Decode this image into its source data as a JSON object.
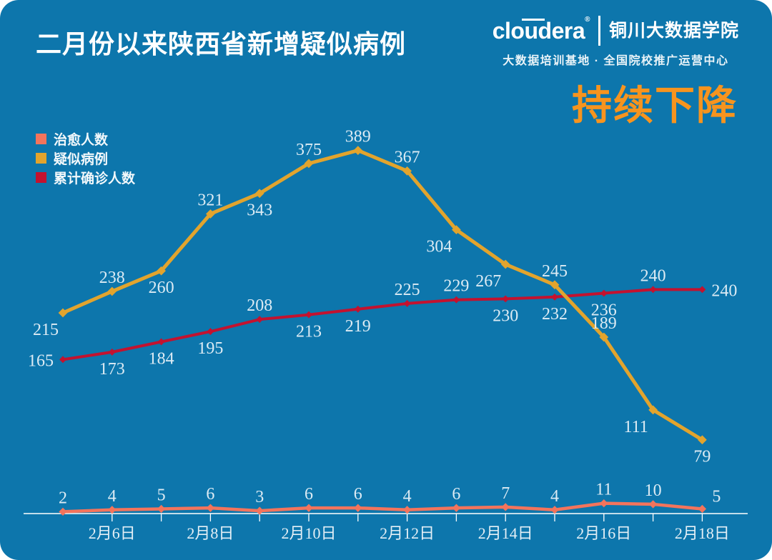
{
  "page": {
    "title": "二月份以来陕西省新增疑似病例",
    "headline": "持续下降",
    "brand": {
      "logo_text": "cloudera",
      "registered_mark": "®",
      "org_name": "铜川大数据学院",
      "tagline": "大数据培训基地 · 全国院校推广运营中心"
    }
  },
  "colors": {
    "background": "#0d76ac",
    "headline": "#f7941e",
    "axis": "#ffffff",
    "label_text": "#dcebf4",
    "cured": "#f3745c",
    "suspected": "#e2a42d",
    "confirmed": "#c3122f"
  },
  "legend": {
    "items": [
      {
        "label": "治愈人数",
        "color_key": "cured"
      },
      {
        "label": "疑似病例",
        "color_key": "suspected"
      },
      {
        "label": "累计确诊人数",
        "color_key": "confirmed"
      }
    ]
  },
  "chart_data": {
    "type": "line",
    "title": "二月份以来陕西省新增疑似病例",
    "num_points": 14,
    "x_tick_labels": [
      "2月6日",
      "2月8日",
      "2月10日",
      "2月12日",
      "2月14日",
      "2月16日",
      "2月18日"
    ],
    "x_tick_indices": [
      1,
      3,
      5,
      7,
      9,
      11,
      13
    ],
    "ylim": [
      0,
      420
    ],
    "grid": false,
    "legend_position": "top-left",
    "draw_order": [
      2,
      1,
      0
    ],
    "series": [
      {
        "key": "cured",
        "name": "治愈人数",
        "color": "#f3745c",
        "width": 4.5,
        "marker": 8,
        "values": [
          2,
          4,
          5,
          6,
          3,
          6,
          6,
          4,
          6,
          7,
          4,
          11,
          10,
          5
        ],
        "label_pos": [
          "above",
          "above",
          "above",
          "above",
          "above",
          "above",
          "above",
          "above",
          "above",
          "above",
          "above",
          "above",
          "above",
          "above-right"
        ]
      },
      {
        "key": "suspected",
        "name": "疑似病例",
        "color": "#e2a42d",
        "width": 5,
        "marker": 9,
        "values": [
          215,
          238,
          260,
          321,
          343,
          375,
          389,
          367,
          304,
          267,
          245,
          189,
          111,
          79
        ],
        "label_pos": [
          "below-left",
          "above",
          "below",
          "above",
          "below",
          "above",
          "above",
          "above",
          "below-left",
          "below-left",
          "above",
          "above",
          "below-left",
          "below"
        ]
      },
      {
        "key": "confirmed",
        "name": "累计确诊人数",
        "color": "#c3122f",
        "width": 4,
        "marker": 7,
        "values": [
          165,
          173,
          184,
          195,
          208,
          213,
          219,
          225,
          229,
          230,
          232,
          236,
          240,
          240
        ],
        "label_pos": [
          "left",
          "below",
          "below",
          "below",
          "above",
          "below",
          "below",
          "above",
          "above",
          "below",
          "below",
          "below",
          "above",
          "right"
        ]
      }
    ]
  }
}
